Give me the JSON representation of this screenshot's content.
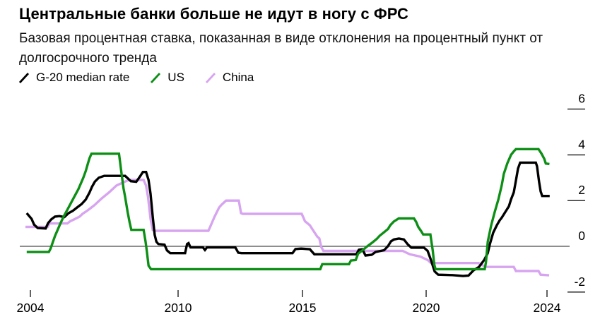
{
  "header": {
    "title": "Центральные банки больше не идут в ногу с ФРС",
    "subtitle": "Базовая процентная ставка, показанная в виде отклонения на процентный пункт от долгосрочного тренда"
  },
  "legend": {
    "items": [
      {
        "label": "G-20 median rate",
        "color": "#000000"
      },
      {
        "label": "US",
        "color": "#0d8f16"
      },
      {
        "label": "China",
        "color": "#d7a4f0"
      }
    ]
  },
  "chart_data": {
    "type": "line",
    "title": "Центральные банки больше не идут в ногу с ФРС",
    "xlabel": "",
    "ylabel": "",
    "ylim": [
      -2.6,
      6.4
    ],
    "grid": false,
    "zero_line": true,
    "legend_position": "top-left",
    "x_ticks": [
      {
        "label": "2004",
        "year": 2004
      },
      {
        "label": "2010",
        "year": 2010
      },
      {
        "label": "2015",
        "year": 2015
      },
      {
        "label": "2020",
        "year": 2020
      },
      {
        "label": "2024",
        "year": 2024
      }
    ],
    "y_ticks": [
      {
        "label": "6",
        "value": 6
      },
      {
        "label": "4",
        "value": 4
      },
      {
        "label": "2",
        "value": 2
      },
      {
        "label": "0",
        "value": 0
      },
      {
        "label": "-2",
        "value": -2
      }
    ],
    "series": [
      {
        "name": "G-20 median rate",
        "color": "#000000",
        "points": [
          [
            2003.85,
            1.45
          ],
          [
            2004.05,
            1.2
          ],
          [
            2004.15,
            0.95
          ],
          [
            2004.3,
            0.8
          ],
          [
            2004.62,
            0.78
          ],
          [
            2004.72,
            1.02
          ],
          [
            2004.85,
            1.18
          ],
          [
            2005.0,
            1.3
          ],
          [
            2005.18,
            1.32
          ],
          [
            2005.38,
            1.28
          ],
          [
            2005.55,
            1.45
          ],
          [
            2005.72,
            1.55
          ],
          [
            2005.9,
            1.7
          ],
          [
            2006.08,
            1.85
          ],
          [
            2006.25,
            2.05
          ],
          [
            2006.4,
            2.35
          ],
          [
            2006.5,
            2.6
          ],
          [
            2006.62,
            2.83
          ],
          [
            2006.78,
            3.0
          ],
          [
            2007.0,
            3.08
          ],
          [
            2007.85,
            3.08
          ],
          [
            2008.08,
            2.85
          ],
          [
            2008.3,
            2.82
          ],
          [
            2008.45,
            3.05
          ],
          [
            2008.57,
            3.25
          ],
          [
            2008.7,
            3.25
          ],
          [
            2008.8,
            2.9
          ],
          [
            2008.88,
            2.3
          ],
          [
            2008.97,
            1.3
          ],
          [
            2009.05,
            0.5
          ],
          [
            2009.12,
            0.2
          ],
          [
            2009.2,
            0.1
          ],
          [
            2009.45,
            0.07
          ],
          [
            2009.55,
            -0.18
          ],
          [
            2009.68,
            -0.3
          ],
          [
            2010.28,
            -0.3
          ],
          [
            2010.36,
            0.1
          ],
          [
            2010.42,
            0.14
          ],
          [
            2010.5,
            -0.05
          ],
          [
            2011.0,
            -0.05
          ],
          [
            2011.08,
            -0.16
          ],
          [
            2011.16,
            -0.05
          ],
          [
            2012.3,
            -0.05
          ],
          [
            2012.42,
            -0.28
          ],
          [
            2012.55,
            -0.3
          ],
          [
            2014.6,
            -0.3
          ],
          [
            2014.72,
            -0.12
          ],
          [
            2014.95,
            -0.1
          ],
          [
            2015.3,
            -0.13
          ],
          [
            2015.48,
            -0.35
          ],
          [
            2017.18,
            -0.35
          ],
          [
            2017.28,
            -0.15
          ],
          [
            2017.42,
            -0.13
          ],
          [
            2017.55,
            -0.4
          ],
          [
            2017.8,
            -0.37
          ],
          [
            2017.95,
            -0.25
          ],
          [
            2018.3,
            -0.17
          ],
          [
            2018.45,
            0.0
          ],
          [
            2018.58,
            0.22
          ],
          [
            2018.7,
            0.3
          ],
          [
            2018.9,
            0.34
          ],
          [
            2019.1,
            0.3
          ],
          [
            2019.26,
            0.08
          ],
          [
            2019.4,
            -0.06
          ],
          [
            2019.91,
            -0.06
          ],
          [
            2020.05,
            -0.2
          ],
          [
            2020.16,
            -0.6
          ],
          [
            2020.28,
            -1.1
          ],
          [
            2020.4,
            -1.24
          ],
          [
            2020.87,
            -1.26
          ],
          [
            2021.22,
            -1.3
          ],
          [
            2021.4,
            -1.28
          ],
          [
            2021.57,
            -1.05
          ],
          [
            2021.75,
            -0.9
          ],
          [
            2021.92,
            -0.6
          ],
          [
            2022.04,
            -0.3
          ],
          [
            2022.11,
            0.1
          ],
          [
            2022.22,
            0.6
          ],
          [
            2022.34,
            0.92
          ],
          [
            2022.43,
            1.13
          ],
          [
            2022.5,
            1.25
          ],
          [
            2022.62,
            1.5
          ],
          [
            2022.74,
            1.75
          ],
          [
            2022.81,
            2.05
          ],
          [
            2022.9,
            2.36
          ],
          [
            2022.97,
            2.87
          ],
          [
            2023.04,
            3.4
          ],
          [
            2023.11,
            3.66
          ],
          [
            2023.63,
            3.66
          ],
          [
            2023.67,
            3.5
          ],
          [
            2023.74,
            2.8
          ],
          [
            2023.79,
            2.4
          ],
          [
            2023.84,
            2.2
          ],
          [
            2024.09,
            2.2
          ]
        ]
      },
      {
        "name": "US",
        "color": "#0d8f16",
        "points": [
          [
            2003.85,
            -0.25
          ],
          [
            2004.75,
            -0.25
          ],
          [
            2004.82,
            -0.1
          ],
          [
            2004.9,
            0.15
          ],
          [
            2005.0,
            0.45
          ],
          [
            2005.1,
            0.7
          ],
          [
            2005.22,
            1.0
          ],
          [
            2005.35,
            1.3
          ],
          [
            2005.5,
            1.6
          ],
          [
            2005.65,
            1.9
          ],
          [
            2005.8,
            2.2
          ],
          [
            2005.95,
            2.5
          ],
          [
            2006.05,
            2.75
          ],
          [
            2006.15,
            3.0
          ],
          [
            2006.25,
            3.3
          ],
          [
            2006.33,
            3.6
          ],
          [
            2006.4,
            3.85
          ],
          [
            2006.48,
            4.05
          ],
          [
            2007.6,
            4.05
          ],
          [
            2007.7,
            3.2
          ],
          [
            2007.78,
            2.55
          ],
          [
            2007.85,
            2.15
          ],
          [
            2007.95,
            1.5
          ],
          [
            2008.03,
            1.05
          ],
          [
            2008.1,
            0.72
          ],
          [
            2008.6,
            0.72
          ],
          [
            2008.68,
            0.2
          ],
          [
            2008.74,
            -0.3
          ],
          [
            2008.8,
            -0.85
          ],
          [
            2008.9,
            -1.0
          ],
          [
            2015.72,
            -1.0
          ],
          [
            2015.8,
            -0.78
          ],
          [
            2016.88,
            -0.78
          ],
          [
            2016.96,
            -0.62
          ],
          [
            2017.15,
            -0.6
          ],
          [
            2017.25,
            -0.32
          ],
          [
            2017.45,
            -0.15
          ],
          [
            2017.62,
            0.0
          ],
          [
            2017.82,
            0.16
          ],
          [
            2018.0,
            0.32
          ],
          [
            2018.12,
            0.46
          ],
          [
            2018.28,
            0.6
          ],
          [
            2018.46,
            0.76
          ],
          [
            2018.55,
            0.92
          ],
          [
            2018.69,
            1.08
          ],
          [
            2018.89,
            1.22
          ],
          [
            2019.51,
            1.22
          ],
          [
            2019.6,
            1.06
          ],
          [
            2019.68,
            0.85
          ],
          [
            2019.8,
            0.66
          ],
          [
            2019.88,
            0.52
          ],
          [
            2020.14,
            0.52
          ],
          [
            2020.22,
            -0.2
          ],
          [
            2020.27,
            -0.8
          ],
          [
            2020.31,
            -1.0
          ],
          [
            2021.94,
            -1.0
          ],
          [
            2021.98,
            -0.7
          ],
          [
            2022.04,
            0.2
          ],
          [
            2022.15,
            0.9
          ],
          [
            2022.27,
            1.5
          ],
          [
            2022.39,
            2.05
          ],
          [
            2022.5,
            2.66
          ],
          [
            2022.57,
            3.17
          ],
          [
            2022.69,
            3.64
          ],
          [
            2022.81,
            4.0
          ],
          [
            2022.9,
            4.15
          ],
          [
            2022.97,
            4.25
          ],
          [
            2023.72,
            4.25
          ],
          [
            2023.82,
            4.05
          ],
          [
            2023.91,
            3.82
          ],
          [
            2023.96,
            3.62
          ],
          [
            2024.08,
            3.6
          ]
        ]
      },
      {
        "name": "China",
        "color": "#d7a4f0",
        "points": [
          [
            2003.8,
            0.85
          ],
          [
            2004.7,
            0.85
          ],
          [
            2004.78,
            1.0
          ],
          [
            2005.5,
            1.0
          ],
          [
            2005.62,
            1.1
          ],
          [
            2005.78,
            1.18
          ],
          [
            2006.0,
            1.3
          ],
          [
            2006.12,
            1.42
          ],
          [
            2006.3,
            1.55
          ],
          [
            2006.6,
            1.8
          ],
          [
            2006.9,
            2.1
          ],
          [
            2007.2,
            2.36
          ],
          [
            2007.5,
            2.66
          ],
          [
            2007.78,
            2.8
          ],
          [
            2008.0,
            2.9
          ],
          [
            2008.6,
            2.9
          ],
          [
            2008.7,
            2.65
          ],
          [
            2008.78,
            2.15
          ],
          [
            2008.88,
            1.2
          ],
          [
            2008.97,
            0.72
          ],
          [
            2009.05,
            0.68
          ],
          [
            2011.22,
            0.68
          ],
          [
            2011.3,
            0.88
          ],
          [
            2011.38,
            1.08
          ],
          [
            2011.46,
            1.28
          ],
          [
            2011.56,
            1.5
          ],
          [
            2011.65,
            1.7
          ],
          [
            2011.75,
            1.82
          ],
          [
            2011.93,
            2.0
          ],
          [
            2012.44,
            2.0
          ],
          [
            2012.53,
            1.45
          ],
          [
            2012.6,
            1.42
          ],
          [
            2014.97,
            1.42
          ],
          [
            2015.04,
            1.25
          ],
          [
            2015.1,
            1.1
          ],
          [
            2015.3,
            0.92
          ],
          [
            2015.38,
            0.78
          ],
          [
            2015.6,
            0.42
          ],
          [
            2015.68,
            0.35
          ],
          [
            2015.76,
            -0.03
          ],
          [
            2015.85,
            -0.2
          ],
          [
            2019.05,
            -0.2
          ],
          [
            2019.34,
            -0.35
          ],
          [
            2019.77,
            -0.45
          ],
          [
            2020.05,
            -0.6
          ],
          [
            2020.16,
            -0.73
          ],
          [
            2021.73,
            -0.73
          ],
          [
            2021.97,
            -0.9
          ],
          [
            2022.9,
            -0.9
          ],
          [
            2022.97,
            -1.08
          ],
          [
            2023.72,
            -1.08
          ],
          [
            2023.79,
            -1.24
          ],
          [
            2024.07,
            -1.27
          ]
        ]
      }
    ]
  }
}
